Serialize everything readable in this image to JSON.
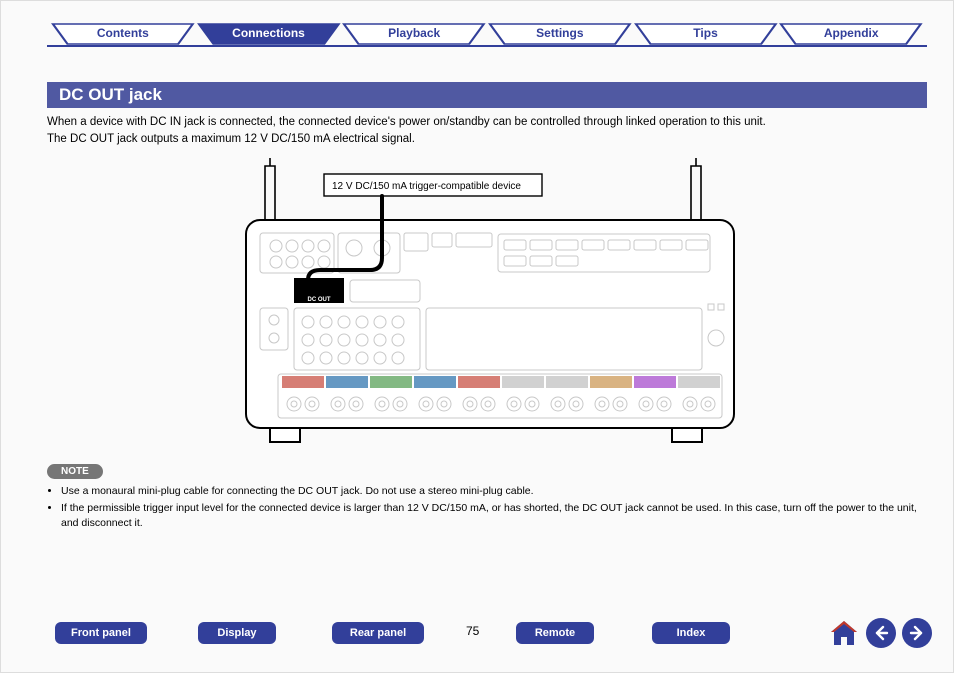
{
  "tabs": {
    "items": [
      "Contents",
      "Connections",
      "Playback",
      "Settings",
      "Tips",
      "Appendix"
    ],
    "active_index": 1,
    "color_active_fill": "#323f9a",
    "color_inactive_stroke": "#323f9a",
    "color_text": "#323f9a",
    "color_text_active": "#ffffff",
    "underline_color": "#323f9a"
  },
  "heading": {
    "text": "DC OUT jack",
    "bg": "#5059a2",
    "fg": "#ffffff"
  },
  "intro": {
    "line1": "When a device with DC IN jack is connected, the connected device's power on/standby can be controlled through linked operation to this unit.",
    "line2": "The DC OUT jack outputs a maximum 12 V DC/150 mA electrical signal."
  },
  "diagram": {
    "callout_label": "12 V DC/150 mA trigger-compatible device",
    "jack_label": "DC OUT",
    "stroke": "#000000",
    "light_stroke": "#bdbdbd",
    "bg": "#ffffff",
    "speaker_fills": [
      "#c0392b",
      "#1463a3",
      "#409440",
      "#1463a3",
      "#c0392b",
      "#b9b9b9",
      "#b9b9b9",
      "#c48a3f",
      "#9a33c4",
      "#b9b9b9"
    ]
  },
  "note": {
    "label": "NOTE",
    "items": [
      "Use a monaural mini-plug cable for connecting the DC OUT jack. Do not use a stereo mini-plug cable.",
      "If the permissible trigger input level for the connected device is larger than 12 V DC/150 mA, or has shorted, the DC OUT jack cannot be used. In this case, turn off the power to the unit, and disconnect it."
    ],
    "pill_bg": "#767676",
    "pill_fg": "#ffffff"
  },
  "bottom_buttons": {
    "bg": "#323f9a",
    "fg": "#ffffff",
    "items": [
      "Front panel",
      "Display",
      "Rear panel",
      "Remote",
      "Index"
    ]
  },
  "page_number": "75",
  "nav_icons": {
    "circle_bg": "#323f9a",
    "arrow_fg": "#ffffff",
    "home_fill": "#323f9a",
    "home_roof": "#c0392b"
  }
}
